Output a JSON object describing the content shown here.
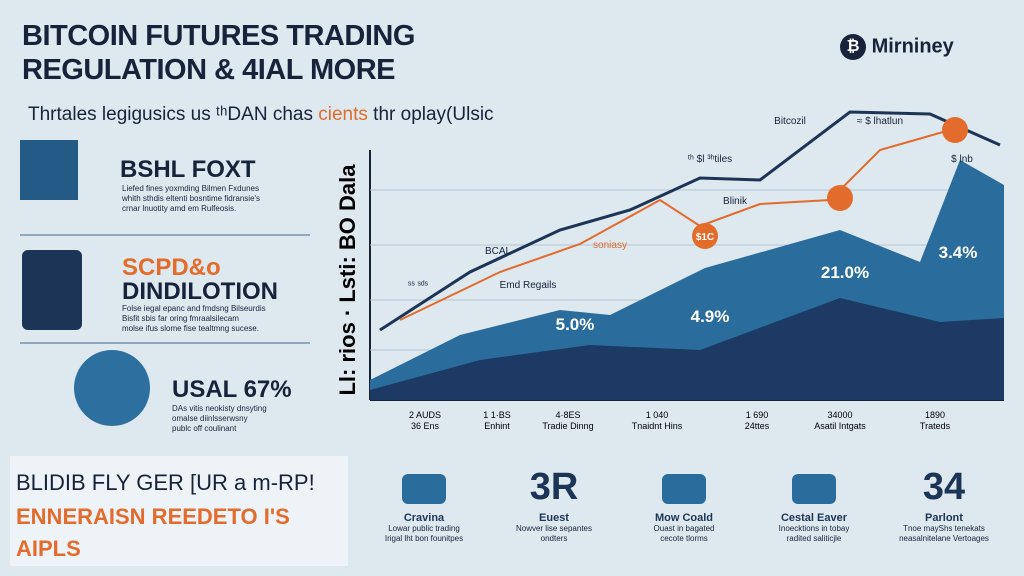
{
  "header": {
    "title": [
      "BITCOIN FUTURES TRADING",
      "REGULATION & 4IAL MORE"
    ],
    "brand": "Mirniney",
    "subtitle": [
      "Thrtales legigusics us ᵗʰDAN chas",
      "cients",
      "thr oplay(Ulsic"
    ]
  },
  "panels": [
    {
      "title": [
        "BSHL FOXT"
      ],
      "text": [
        "Liefed fines yoxmding Bilmen Fxdunes",
        "whith sthdis eltenti bosntime fidransie's",
        "crnar lnuotity amd em Rulfeosis."
      ]
    },
    {
      "title": [
        "SCPD&o",
        "DINDILOTION"
      ],
      "text": [
        "Folse iegal epanc and fmdsng Bilseurdis",
        "Bisfit sbis far oring fmraalsilecam",
        "molse ifus slome fise tealtmng sucese."
      ]
    },
    {
      "title": [
        "USAL 67%"
      ],
      "text": [
        "DAs vitis neokisty dnsyting",
        "omalse diinlsserwsny",
        "publc off coulinant"
      ]
    }
  ],
  "chart": {
    "axis_label": "Ll: rios · Lsti: BO Dala",
    "annotations": [
      "Bitcozil",
      "≈ $ lhatlun",
      "$ lnb",
      "ᵗʰ $l ³ʰtiles",
      "Blinik",
      "BCAL",
      "Emd Regails",
      "ˢˢ ˢᵈˢ",
      "soniasy",
      "$1C",
      "5.0%",
      "4.9%",
      "21.0%",
      "3.4%"
    ],
    "x_labels": [
      [
        "2 AUDS",
        "36 Ens"
      ],
      [
        "1 1·BS",
        "Enhint"
      ],
      [
        "4·8ES",
        "Tradie Dinng"
      ],
      [
        "1 040",
        "Tnaidnt Hins"
      ],
      [
        "1 690",
        "24ttes"
      ],
      [
        "34000",
        "Asatil Intgats"
      ],
      [
        "1890",
        "Trateds"
      ]
    ]
  },
  "footer": {
    "lines": [
      "BLIDIB FLY GER [UR a m-RP!",
      "ENNERAISN REEDETO I'S",
      "AIPLS"
    ],
    "cards": [
      {
        "big": "",
        "title": "Cravina",
        "text": [
          "Lowar public trading",
          "Irigal lht bon founitpes"
        ]
      },
      {
        "big": "3R",
        "title": "Euest",
        "text": [
          "Nowver lise sepantes",
          "ondters"
        ]
      },
      {
        "big": "",
        "title": "Mow Coald",
        "text": [
          "Ouast in bagated",
          "cecote tlorms"
        ]
      },
      {
        "big": "",
        "title": "Cestal Eaver",
        "text": [
          "Inoecktions in tobay",
          "radited saliticjle"
        ]
      },
      {
        "big": "34",
        "title": "Parlont",
        "text": [
          "Tnoe mayShs tenekats",
          "neasalnitelane Vertoages"
        ]
      }
    ]
  }
}
